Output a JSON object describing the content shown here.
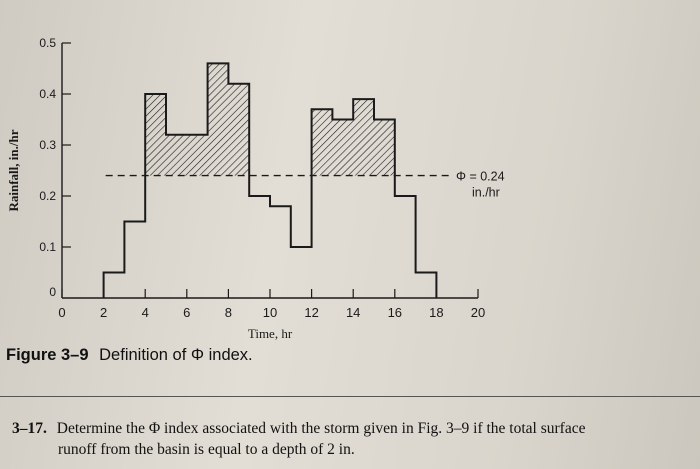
{
  "chart_data": {
    "type": "bar",
    "xlabel": "Time, hr",
    "ylabel": "Rainfall, in./hr",
    "xlim": [
      0,
      20
    ],
    "ylim": [
      0,
      0.5
    ],
    "x_ticks": [
      "0",
      "2",
      "4",
      "6",
      "8",
      "10",
      "12",
      "14",
      "16",
      "18",
      "20"
    ],
    "y_ticks": [
      "0",
      "0.1",
      "0.2",
      "0.3",
      "0.4",
      "0.5"
    ],
    "intervals": [
      {
        "start": 2,
        "end": 3,
        "value": 0.05
      },
      {
        "start": 3,
        "end": 4,
        "value": 0.15
      },
      {
        "start": 4,
        "end": 5,
        "value": 0.4
      },
      {
        "start": 5,
        "end": 7,
        "value": 0.32
      },
      {
        "start": 7,
        "end": 8,
        "value": 0.46
      },
      {
        "start": 8,
        "end": 9,
        "value": 0.42
      },
      {
        "start": 9,
        "end": 10,
        "value": 0.2
      },
      {
        "start": 10,
        "end": 11,
        "value": 0.18
      },
      {
        "start": 11,
        "end": 12,
        "value": 0.1
      },
      {
        "start": 12,
        "end": 13,
        "value": 0.37
      },
      {
        "start": 13,
        "end": 14,
        "value": 0.35
      },
      {
        "start": 14,
        "end": 15,
        "value": 0.39
      },
      {
        "start": 15,
        "end": 16,
        "value": 0.35
      },
      {
        "start": 16,
        "end": 17,
        "value": 0.2
      },
      {
        "start": 17,
        "end": 18,
        "value": 0.05
      }
    ],
    "phi_line": {
      "value": 0.24,
      "label": "Φ = 0.24",
      "unit": "in./hr"
    },
    "grid": false,
    "legend": "none"
  },
  "caption": {
    "label": "Figure 3–9",
    "text": "Definition of Φ index."
  },
  "problem": {
    "number": "3–17.",
    "line1": "Determine the Φ index associated with the storm given in Fig. 3–9 if the total surface",
    "line2": "runoff from the basin is equal to a depth of 2 in."
  },
  "colors": {
    "ink": "#1a1a1a",
    "page": "#dcd8cf"
  }
}
